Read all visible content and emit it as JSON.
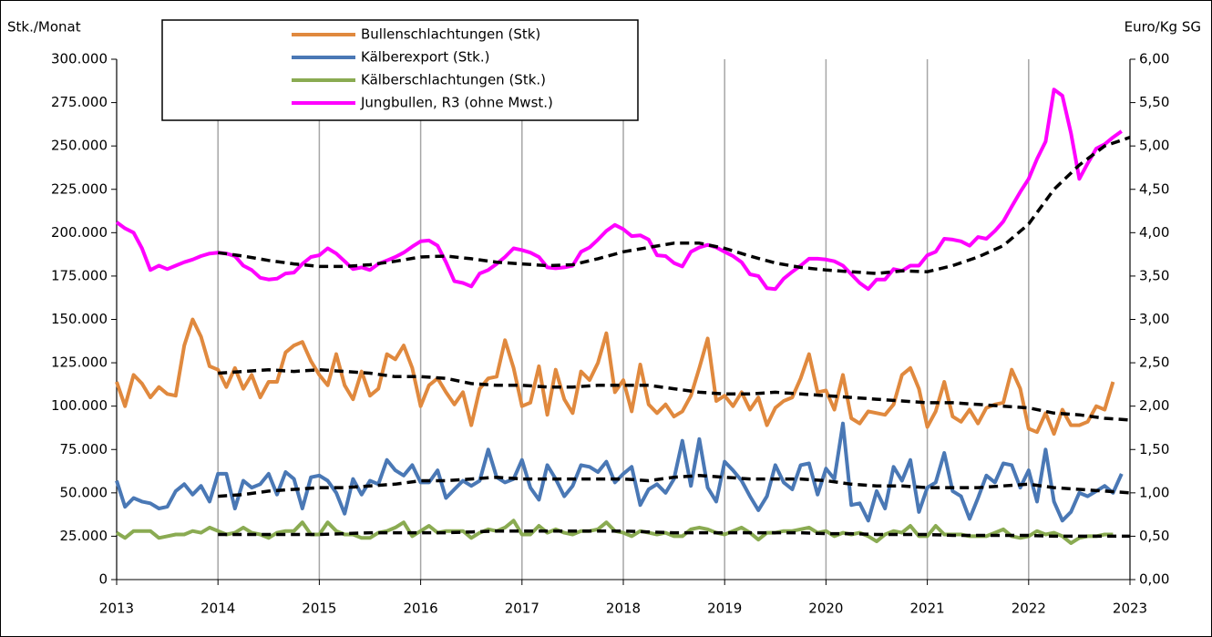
{
  "chart_data": {
    "type": "line",
    "y_label": "Stk./Monat",
    "y2_label": "Euro/Kg SG",
    "xlim": [
      2013,
      2023
    ],
    "xticks": [
      2013,
      2014,
      2015,
      2016,
      2017,
      2018,
      2019,
      2020,
      2021,
      2022,
      2023
    ],
    "ylim": [
      0,
      300000
    ],
    "yticks": [
      {
        "value": 0,
        "label": "0"
      },
      {
        "value": 25000,
        "label": "25.000"
      },
      {
        "value": 50000,
        "label": "50.000"
      },
      {
        "value": 75000,
        "label": "75.000"
      },
      {
        "value": 100000,
        "label": "100.000"
      },
      {
        "value": 125000,
        "label": "125.000"
      },
      {
        "value": 150000,
        "label": "150.000"
      },
      {
        "value": 175000,
        "label": "175.000"
      },
      {
        "value": 200000,
        "label": "200.000"
      },
      {
        "value": 225000,
        "label": "225.000"
      },
      {
        "value": 250000,
        "label": "250.000"
      },
      {
        "value": 275000,
        "label": "275.000"
      },
      {
        "value": 300000,
        "label": "300.000"
      }
    ],
    "y2lim": [
      0,
      6
    ],
    "y2ticks": [
      {
        "value": 0,
        "label": "0,00"
      },
      {
        "value": 0.5,
        "label": "0,50"
      },
      {
        "value": 1,
        "label": "1,00"
      },
      {
        "value": 1.5,
        "label": "1,50"
      },
      {
        "value": 2,
        "label": "2,00"
      },
      {
        "value": 2.5,
        "label": "2,50"
      },
      {
        "value": 3,
        "label": "3,00"
      },
      {
        "value": 3.5,
        "label": "3,50"
      },
      {
        "value": 4,
        "label": "4,00"
      },
      {
        "value": 4.5,
        "label": "4,50"
      },
      {
        "value": 5,
        "label": "5,00"
      },
      {
        "value": 5.5,
        "label": "5,50"
      },
      {
        "value": 6,
        "label": "6,00"
      }
    ],
    "xgrid": true,
    "legend": "top",
    "x": [
      2013,
      2013.083,
      2013.167,
      2013.25,
      2013.333,
      2013.417,
      2013.5,
      2013.583,
      2013.667,
      2013.75,
      2013.833,
      2013.917,
      2014,
      2014.083,
      2014.167,
      2014.25,
      2014.333,
      2014.417,
      2014.5,
      2014.583,
      2014.667,
      2014.75,
      2014.833,
      2014.917,
      2015,
      2015.083,
      2015.167,
      2015.25,
      2015.333,
      2015.417,
      2015.5,
      2015.583,
      2015.667,
      2015.75,
      2015.833,
      2015.917,
      2016,
      2016.083,
      2016.167,
      2016.25,
      2016.333,
      2016.417,
      2016.5,
      2016.583,
      2016.667,
      2016.75,
      2016.833,
      2016.917,
      2017,
      2017.083,
      2017.167,
      2017.25,
      2017.333,
      2017.417,
      2017.5,
      2017.583,
      2017.667,
      2017.75,
      2017.833,
      2017.917,
      2018,
      2018.083,
      2018.167,
      2018.25,
      2018.333,
      2018.417,
      2018.5,
      2018.583,
      2018.667,
      2018.75,
      2018.833,
      2018.917,
      2019,
      2019.083,
      2019.167,
      2019.25,
      2019.333,
      2019.417,
      2019.5,
      2019.583,
      2019.667,
      2019.75,
      2019.833,
      2019.917,
      2020,
      2020.083,
      2020.167,
      2020.25,
      2020.333,
      2020.417,
      2020.5,
      2020.583,
      2020.667,
      2020.75,
      2020.833,
      2020.917,
      2021,
      2021.083,
      2021.167,
      2021.25,
      2021.333,
      2021.417,
      2021.5,
      2021.583,
      2021.667,
      2021.75,
      2021.833,
      2021.917,
      2022,
      2022.083,
      2022.167,
      2022.25,
      2022.333,
      2022.417,
      2022.5,
      2022.583,
      2022.667,
      2022.75,
      2022.833,
      2022.917
    ],
    "series": [
      {
        "name": "Bullenschlachtungen (Stk)",
        "color": "#e0893e",
        "values": [
          114000,
          100000,
          118000,
          113000,
          105000,
          111000,
          107000,
          106000,
          135000,
          150000,
          140000,
          123000,
          121000,
          111000,
          122000,
          110000,
          118000,
          105000,
          114000,
          114000,
          131000,
          135000,
          137000,
          126000,
          118000,
          112000,
          130000,
          112000,
          104000,
          120000,
          106000,
          110000,
          130000,
          127000,
          135000,
          122000,
          100000,
          112000,
          116000,
          108000,
          101000,
          108000,
          89000,
          110000,
          116000,
          117000,
          138000,
          122000,
          100000,
          102000,
          123000,
          95000,
          121000,
          104000,
          96000,
          120000,
          115000,
          125000,
          142000,
          108000,
          115000,
          97000,
          124000,
          101000,
          96000,
          101000,
          94000,
          97000,
          106000,
          122000,
          139000,
          103000,
          106000,
          100000,
          108000,
          98000,
          105000,
          89000,
          99000,
          103000,
          105000,
          116000,
          130000,
          108000,
          109000,
          98000,
          118000,
          93000,
          90000,
          97000,
          96000,
          95000,
          101000,
          118000,
          122000,
          110000,
          88000,
          97000,
          114000,
          94000,
          91000,
          98000,
          90000,
          99000,
          101000,
          102000,
          121000,
          110000,
          87000,
          85000,
          96000,
          84000,
          98000,
          89000,
          89000,
          91000,
          100000,
          98000,
          114000,
          null
        ]
      },
      {
        "name": "Kälberexport (Stk.)",
        "color": "#4a78b5",
        "values": [
          57000,
          42000,
          47000,
          45000,
          44000,
          41000,
          42000,
          51000,
          55000,
          49000,
          54000,
          45000,
          61000,
          61000,
          41000,
          57000,
          53000,
          55000,
          61000,
          49000,
          62000,
          58000,
          41000,
          59000,
          60000,
          57000,
          50000,
          38000,
          58000,
          49000,
          57000,
          55000,
          69000,
          63000,
          60000,
          66000,
          56000,
          56000,
          63000,
          47000,
          52000,
          57000,
          54000,
          57000,
          75000,
          59000,
          56000,
          58000,
          69000,
          53000,
          46000,
          66000,
          58000,
          48000,
          54000,
          66000,
          65000,
          62000,
          68000,
          56000,
          61000,
          65000,
          43000,
          52000,
          55000,
          50000,
          58000,
          80000,
          54000,
          81000,
          53000,
          45000,
          68000,
          63000,
          57000,
          48000,
          40000,
          48000,
          66000,
          56000,
          52000,
          66000,
          67000,
          49000,
          64000,
          58000,
          90000,
          43000,
          44000,
          34000,
          51000,
          41000,
          65000,
          57000,
          69000,
          39000,
          53000,
          56000,
          73000,
          51000,
          48000,
          35000,
          47000,
          60000,
          56000,
          67000,
          66000,
          53000,
          63000,
          45000,
          75000,
          45000,
          34000,
          39000,
          50000,
          48000,
          51000,
          54000,
          50000,
          61000
        ]
      },
      {
        "name": "Kälberschlachtungen (Stk.)",
        "color": "#8aab52",
        "values": [
          27000,
          24000,
          28000,
          28000,
          28000,
          24000,
          25000,
          26000,
          26000,
          28000,
          27000,
          30000,
          28000,
          26000,
          27000,
          30000,
          27000,
          26000,
          24000,
          27000,
          28000,
          28000,
          33000,
          26000,
          26000,
          33000,
          28000,
          26000,
          26000,
          24000,
          24000,
          27000,
          28000,
          30000,
          33000,
          25000,
          28000,
          31000,
          27000,
          28000,
          28000,
          28000,
          24000,
          27000,
          29000,
          28000,
          30000,
          34000,
          26000,
          26000,
          31000,
          27000,
          29000,
          27000,
          26000,
          28000,
          28000,
          29000,
          33000,
          28000,
          27000,
          25000,
          28000,
          27000,
          26000,
          27000,
          25000,
          25000,
          29000,
          30000,
          29000,
          27000,
          26000,
          28000,
          30000,
          27000,
          23000,
          27000,
          27000,
          28000,
          28000,
          29000,
          30000,
          27000,
          28000,
          25000,
          27000,
          26000,
          27000,
          25000,
          22000,
          26000,
          28000,
          27000,
          31000,
          25000,
          25000,
          31000,
          26000,
          26000,
          26000,
          25000,
          25000,
          25000,
          27000,
          29000,
          25000,
          24000,
          25000,
          28000,
          26000,
          27000,
          25000,
          21000,
          24000,
          25000,
          25000,
          26000,
          26000,
          null
        ]
      },
      {
        "name": "Jungbullen, R3 (ohne Mwst.)",
        "color": "#ff00ff",
        "axis": "y2",
        "values": [
          4.12,
          4.05,
          4.0,
          3.82,
          3.57,
          3.62,
          3.58,
          3.62,
          3.66,
          3.69,
          3.73,
          3.76,
          3.77,
          3.76,
          3.73,
          3.62,
          3.57,
          3.48,
          3.46,
          3.47,
          3.53,
          3.54,
          3.64,
          3.72,
          3.74,
          3.82,
          3.76,
          3.67,
          3.58,
          3.6,
          3.57,
          3.64,
          3.68,
          3.72,
          3.77,
          3.84,
          3.9,
          3.91,
          3.85,
          3.66,
          3.44,
          3.42,
          3.38,
          3.53,
          3.57,
          3.64,
          3.72,
          3.82,
          3.8,
          3.77,
          3.72,
          3.6,
          3.59,
          3.6,
          3.62,
          3.78,
          3.83,
          3.92,
          4.02,
          4.09,
          4.04,
          3.96,
          3.97,
          3.92,
          3.74,
          3.73,
          3.65,
          3.61,
          3.78,
          3.83,
          3.86,
          3.83,
          3.78,
          3.73,
          3.66,
          3.52,
          3.5,
          3.36,
          3.35,
          3.47,
          3.55,
          3.62,
          3.7,
          3.7,
          3.69,
          3.67,
          3.62,
          3.52,
          3.42,
          3.35,
          3.46,
          3.46,
          3.58,
          3.56,
          3.62,
          3.62,
          3.74,
          3.78,
          3.93,
          3.92,
          3.9,
          3.85,
          3.95,
          3.93,
          4.02,
          4.13,
          4.3,
          4.47,
          4.62,
          4.85,
          5.05,
          5.65,
          5.58,
          5.15,
          4.62,
          4.8,
          4.97,
          5.02,
          5.1,
          5.17
        ]
      },
      {
        "color": "#000000",
        "style": "dashed",
        "x": [
          2014,
          2014.25,
          2014.5,
          2014.75,
          2015,
          2015.25,
          2015.5,
          2015.75,
          2016,
          2016.25,
          2016.5,
          2016.75,
          2017,
          2017.25,
          2017.5,
          2017.75,
          2018,
          2018.25,
          2018.5,
          2018.75,
          2019,
          2019.25,
          2019.5,
          2019.75,
          2020,
          2020.25,
          2020.5,
          2020.75,
          2021,
          2021.25,
          2021.5,
          2021.75,
          2022,
          2022.25,
          2022.5,
          2022.75,
          2023
        ],
        "values": [
          119000,
          120000,
          121000,
          120000,
          121000,
          120000,
          119000,
          117000,
          117000,
          116000,
          113000,
          112000,
          112000,
          111000,
          111000,
          112000,
          112000,
          112000,
          110000,
          108000,
          107000,
          107000,
          108000,
          107000,
          106000,
          105000,
          104000,
          103000,
          102000,
          102000,
          101000,
          100000,
          99000,
          96000,
          95000,
          93000,
          92000
        ]
      },
      {
        "color": "#000000",
        "style": "dashed",
        "x": [
          2014,
          2014.25,
          2014.5,
          2014.75,
          2015,
          2015.25,
          2015.5,
          2015.75,
          2016,
          2016.25,
          2016.5,
          2016.75,
          2017,
          2017.25,
          2017.5,
          2017.75,
          2018,
          2018.25,
          2018.5,
          2018.75,
          2019,
          2019.25,
          2019.5,
          2019.75,
          2020,
          2020.25,
          2020.5,
          2020.75,
          2021,
          2021.25,
          2021.5,
          2021.75,
          2022,
          2022.25,
          2022.5,
          2022.75,
          2023
        ],
        "values": [
          48000,
          49000,
          51000,
          52000,
          53000,
          53000,
          54000,
          55000,
          57000,
          57000,
          58000,
          59000,
          58000,
          58000,
          58000,
          58000,
          58000,
          57000,
          59000,
          60000,
          59000,
          58000,
          58000,
          58000,
          57000,
          55000,
          54000,
          54000,
          53000,
          53000,
          53000,
          54000,
          55000,
          53000,
          52000,
          51000,
          50000
        ]
      },
      {
        "color": "#000000",
        "style": "dashed",
        "x": [
          2014,
          2014.25,
          2014.5,
          2014.75,
          2015,
          2015.25,
          2015.5,
          2015.75,
          2016,
          2016.25,
          2016.5,
          2016.75,
          2017,
          2017.25,
          2017.5,
          2017.75,
          2018,
          2018.25,
          2018.5,
          2018.75,
          2019,
          2019.25,
          2019.5,
          2019.75,
          2020,
          2020.25,
          2020.5,
          2020.75,
          2021,
          2021.25,
          2021.5,
          2021.75,
          2022,
          2022.25,
          2022.5,
          2022.75,
          2023
        ],
        "values": [
          26000,
          26000,
          26000,
          26000,
          26000,
          26500,
          27000,
          27000,
          27000,
          27000,
          27500,
          28000,
          28000,
          28000,
          28000,
          28000,
          28000,
          27500,
          27000,
          27000,
          27000,
          27000,
          27000,
          27000,
          26500,
          26500,
          26000,
          26000,
          26000,
          25500,
          25500,
          25500,
          25500,
          25000,
          25000,
          25000,
          25000
        ]
      },
      {
        "color": "#000000",
        "style": "dashed",
        "axis": "y2",
        "x": [
          2014,
          2014.25,
          2014.5,
          2014.75,
          2015,
          2015.25,
          2015.5,
          2015.75,
          2016,
          2016.25,
          2016.5,
          2016.75,
          2017,
          2017.25,
          2017.5,
          2017.75,
          2018,
          2018.25,
          2018.5,
          2018.75,
          2019,
          2019.25,
          2019.5,
          2019.75,
          2020,
          2020.25,
          2020.5,
          2020.75,
          2021,
          2021.25,
          2021.5,
          2021.75,
          2022,
          2022.25,
          2022.5,
          2022.75,
          2023
        ],
        "values": [
          3.77,
          3.73,
          3.68,
          3.64,
          3.61,
          3.61,
          3.63,
          3.67,
          3.72,
          3.73,
          3.7,
          3.66,
          3.64,
          3.62,
          3.63,
          3.7,
          3.78,
          3.83,
          3.88,
          3.88,
          3.82,
          3.73,
          3.65,
          3.6,
          3.57,
          3.55,
          3.53,
          3.56,
          3.55,
          3.62,
          3.72,
          3.85,
          4.1,
          4.5,
          4.78,
          5.0,
          5.1
        ]
      }
    ]
  }
}
